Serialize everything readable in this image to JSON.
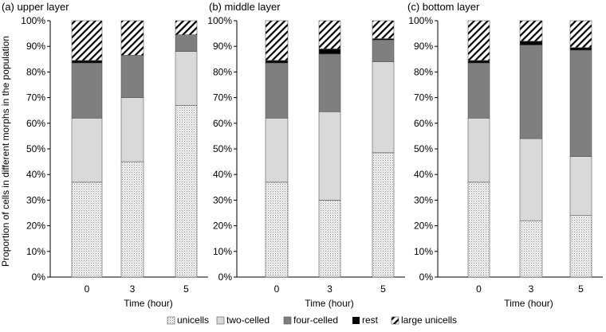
{
  "y_axis_label": "Proportion of cells in different morphs in the population",
  "colors": {
    "unicells": "#d9d9d9",
    "two-celled": "#d9d9d9",
    "four-celled": "#7f7f7f",
    "rest": "#000000",
    "large unicells": "#ffffff",
    "axis": "#000000",
    "bar_stroke": "#555555"
  },
  "legend": [
    {
      "key": "unicells",
      "label": "unicells",
      "pattern": "dots"
    },
    {
      "key": "two-celled",
      "label": "two-celled",
      "pattern": "solid"
    },
    {
      "key": "four-celled",
      "label": "four-celled",
      "pattern": "solid"
    },
    {
      "key": "rest",
      "label": "rest",
      "pattern": "solid"
    },
    {
      "key": "large unicells",
      "label": "large unicells",
      "pattern": "hatch"
    }
  ],
  "chart_data": [
    {
      "type": "bar",
      "stacked": true,
      "title": "(a) upper layer",
      "xlabel": "Time (hour)",
      "ylabel": "Proportion of cells in different morphs in the population",
      "categories": [
        "0",
        "3",
        "5"
      ],
      "ylim": [
        0,
        100
      ],
      "yticks": [
        "0%",
        "10%",
        "20%",
        "30%",
        "40%",
        "50%",
        "60%",
        "70%",
        "80%",
        "90%",
        "100%"
      ],
      "series": [
        {
          "name": "unicells",
          "values": [
            37,
            45,
            67
          ]
        },
        {
          "name": "two-celled",
          "values": [
            25,
            25,
            21
          ]
        },
        {
          "name": "four-celled",
          "values": [
            21.5,
            16.5,
            6.5
          ]
        },
        {
          "name": "rest",
          "values": [
            1,
            0,
            0
          ]
        },
        {
          "name": "large unicells",
          "values": [
            15.5,
            13.5,
            5.5
          ]
        }
      ]
    },
    {
      "type": "bar",
      "stacked": true,
      "title": "(b) middle layer",
      "xlabel": "Time (hour)",
      "categories": [
        "0",
        "3",
        "5"
      ],
      "ylim": [
        0,
        100
      ],
      "yticks": [
        "0%",
        "10%",
        "20%",
        "30%",
        "40%",
        "50%",
        "60%",
        "70%",
        "80%",
        "90%",
        "100%"
      ],
      "series": [
        {
          "name": "unicells",
          "values": [
            37,
            30,
            48.5
          ]
        },
        {
          "name": "two-celled",
          "values": [
            25,
            34.5,
            35.5
          ]
        },
        {
          "name": "four-celled",
          "values": [
            21.5,
            22.5,
            8.5
          ]
        },
        {
          "name": "rest",
          "values": [
            1,
            2,
            0.5
          ]
        },
        {
          "name": "large unicells",
          "values": [
            15.5,
            11,
            7
          ]
        }
      ]
    },
    {
      "type": "bar",
      "stacked": true,
      "title": "(c) bottom layer",
      "xlabel": "Time (hour)",
      "categories": [
        "0",
        "3",
        "5"
      ],
      "ylim": [
        0,
        100
      ],
      "yticks": [
        "0%",
        "10%",
        "20%",
        "30%",
        "40%",
        "50%",
        "60%",
        "70%",
        "80%",
        "90%",
        "100%"
      ],
      "series": [
        {
          "name": "unicells",
          "values": [
            37,
            22,
            24
          ]
        },
        {
          "name": "two-celled",
          "values": [
            25,
            32,
            23
          ]
        },
        {
          "name": "four-celled",
          "values": [
            21.5,
            36.5,
            41.5
          ]
        },
        {
          "name": "rest",
          "values": [
            1,
            1.5,
            1
          ]
        },
        {
          "name": "large unicells",
          "values": [
            15.5,
            8,
            10.5
          ]
        }
      ]
    }
  ]
}
